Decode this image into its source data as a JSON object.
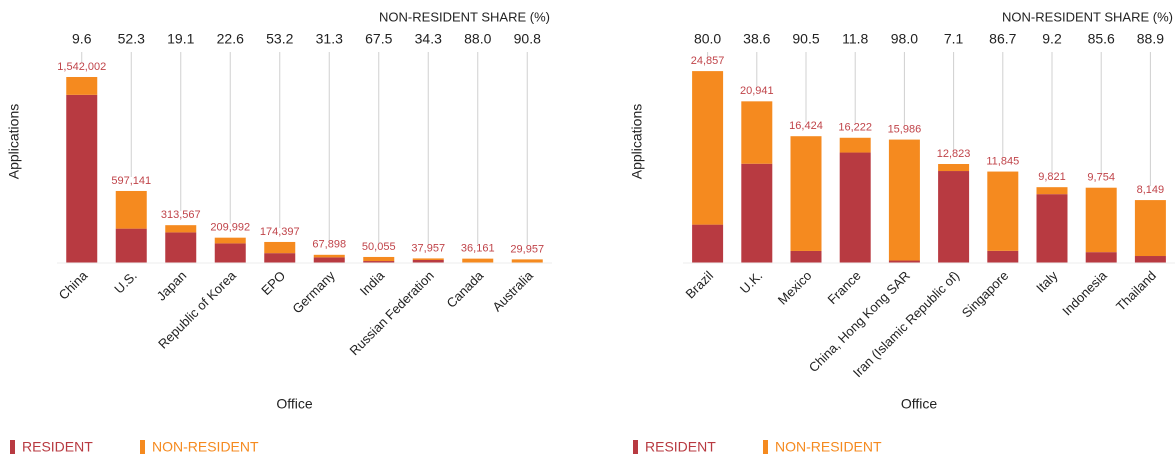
{
  "chart_data": [
    {
      "type": "stacked_bar",
      "y_label": "Applications",
      "x_label": "Office",
      "share_title": "NON-RESIDENT SHARE (%)",
      "categories": [
        "China",
        "U.S.",
        "Japan",
        "Republic of Korea",
        "EPO",
        "Germany",
        "India",
        "Russian Federation",
        "Canada",
        "Australia"
      ],
      "series": [
        {
          "name": "RESIDENT",
          "color": "#b83a41",
          "values": [
            1393970,
            284836,
            253676,
            162534,
            81618,
            46646,
            16268,
            24938,
            4339,
            2756
          ]
        },
        {
          "name": "NON-RESIDENT",
          "color": "#f58a1f",
          "values": [
            148032,
            312305,
            59891,
            47458,
            92779,
            21252,
            33787,
            13019,
            31822,
            27201
          ]
        }
      ],
      "totals": [
        1542002,
        597141,
        313567,
        209992,
        174397,
        67898,
        50055,
        37957,
        36161,
        29957
      ],
      "total_labels": [
        "1,542,002",
        "597,141",
        "313,567",
        "209,992",
        "174,397",
        "67,898",
        "50,055",
        "37,957",
        "36,161",
        "29,957"
      ],
      "shares": [
        9.6,
        52.3,
        19.1,
        22.6,
        53.2,
        31.3,
        67.5,
        34.3,
        88.0,
        90.8
      ],
      "share_labels": [
        "9.6",
        "52.3",
        "19.1",
        "22.6",
        "53.2",
        "31.3",
        "67.5",
        "34.3",
        "88.0",
        "90.8"
      ],
      "ylim": [
        0,
        1600000
      ]
    },
    {
      "type": "stacked_bar",
      "y_label": "Applications",
      "x_label": "Office",
      "share_title": "NON-RESIDENT SHARE (%)",
      "categories": [
        "Brazil",
        "U.K.",
        "Mexico",
        "France",
        "China, Hong Kong SAR",
        "Iran (Islamic Republic of)",
        "Singapore",
        "Italy",
        "Indonesia",
        "Thailand"
      ],
      "series": [
        {
          "name": "RESIDENT",
          "color": "#b83a41",
          "values": [
            4971,
            12858,
            1560,
            14308,
            320,
            11913,
            1575,
            8917,
            1405,
            905
          ]
        },
        {
          "name": "NON-RESIDENT",
          "color": "#f58a1f",
          "values": [
            19886,
            8083,
            14864,
            1914,
            15666,
            910,
            10270,
            904,
            8349,
            7244
          ]
        }
      ],
      "totals": [
        24857,
        20941,
        16424,
        16222,
        15986,
        12823,
        11845,
        9821,
        9754,
        8149
      ],
      "total_labels": [
        "24,857",
        "20,941",
        "16,424",
        "16,222",
        "15,986",
        "12,823",
        "11,845",
        "9,821",
        "9,754",
        "8,149"
      ],
      "shares": [
        80.0,
        38.6,
        90.5,
        11.8,
        98.0,
        7.1,
        86.7,
        9.2,
        85.6,
        88.9
      ],
      "share_labels": [
        "80.0",
        "38.6",
        "90.5",
        "11.8",
        "98.0",
        "7.1",
        "86.7",
        "9.2",
        "85.6",
        "88.9"
      ],
      "ylim": [
        0,
        25000
      ]
    }
  ]
}
